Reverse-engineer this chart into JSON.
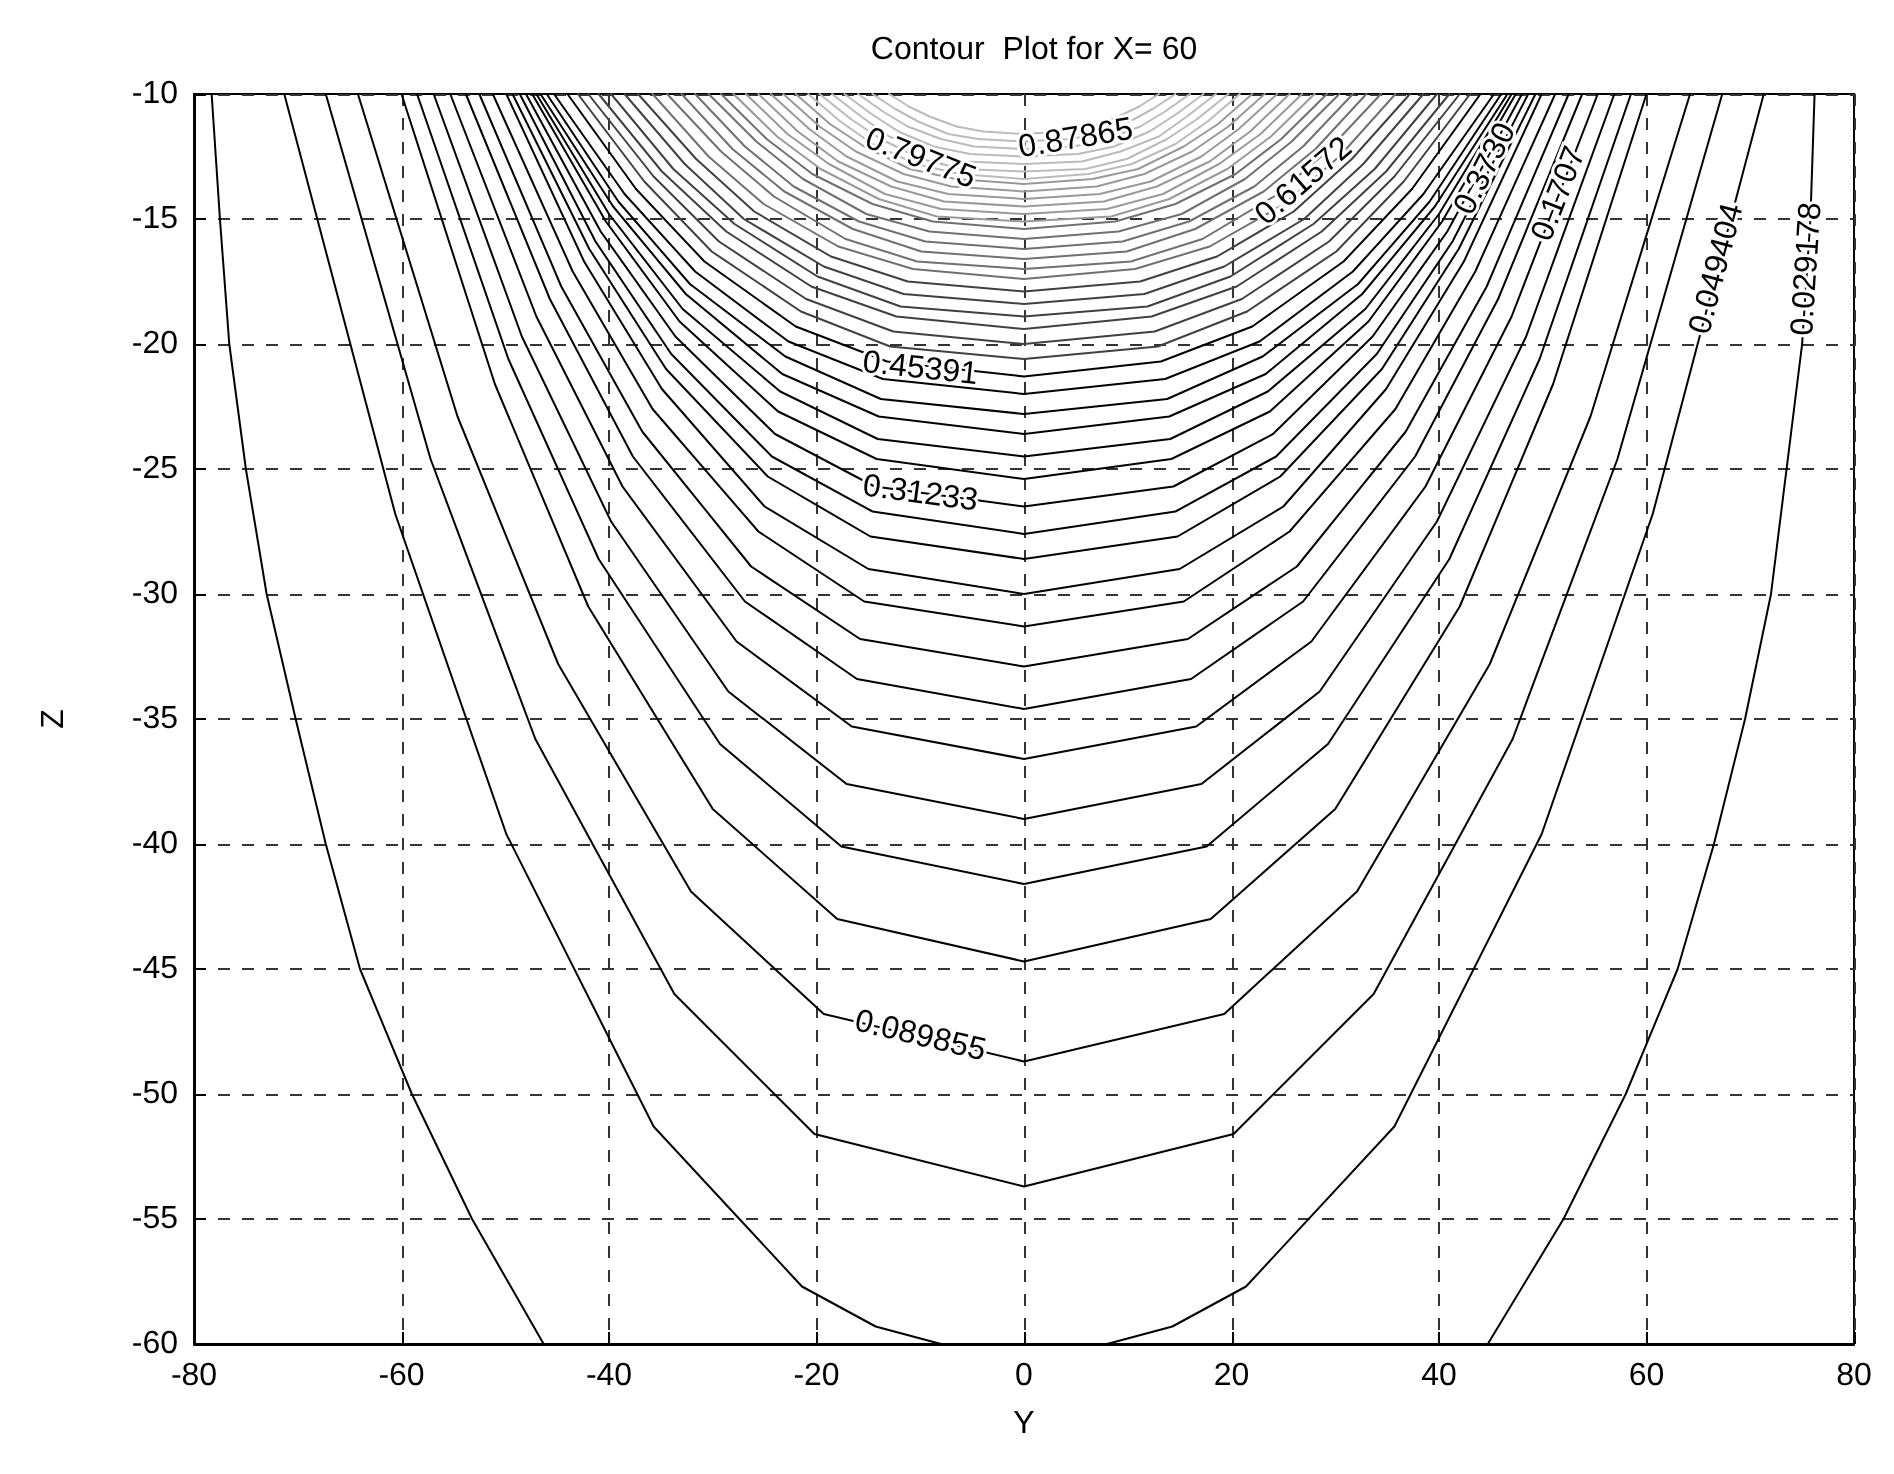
{
  "chart_data": {
    "type": "line",
    "title": "Contour  Plot for X= 60",
    "xlabel": "Y",
    "ylabel": "Z",
    "xlim": [
      -80,
      80
    ],
    "xticks": [
      -80,
      -60,
      -40,
      -20,
      0,
      20,
      40,
      60,
      80
    ],
    "ylim": [
      -60,
      -10
    ],
    "yticks": [
      -60,
      -55,
      -50,
      -45,
      -40,
      -35,
      -30,
      -25,
      -20,
      -15,
      -10
    ],
    "grid": true,
    "marker": "none",
    "line_style": "solid",
    "annotations": [
      {
        "text": "0.79775",
        "x": -10,
        "y": -12.6
      },
      {
        "text": "0.87865",
        "x": 5,
        "y": -11.8
      },
      {
        "text": "0.61572",
        "x": 27,
        "y": -13.5
      },
      {
        "text": "0.3730",
        "x": 44.5,
        "y": -13
      },
      {
        "text": "0.1707",
        "x": 51.6,
        "y": -14
      },
      {
        "text": "0.049404",
        "x": 66.8,
        "y": -17
      },
      {
        "text": "0.029178",
        "x": 75.5,
        "y": -17
      },
      {
        "text": "0.45391",
        "x": -10,
        "y": -21
      },
      {
        "text": "0.31233",
        "x": -10,
        "y": -26
      },
      {
        "text": "0.089855",
        "x": -10,
        "y": -47.7
      }
    ],
    "series": [
      {
        "color": "#000000",
        "x": [
          -78.3,
          -77.5,
          -76.6,
          -75,
          -73,
          -70.2,
          -67.3,
          -64,
          -59,
          -53.2,
          -46.3,
          0,
          44.7,
          52,
          58,
          63,
          66.5,
          69.5,
          72,
          73.5,
          75,
          75.8,
          76.2
        ],
        "values": [
          -10,
          -15,
          -20,
          -25,
          -30,
          -35,
          -40,
          -45,
          -50,
          -55,
          -60,
          null,
          -60,
          -55,
          -50,
          -45,
          -40,
          -35,
          -30,
          -25,
          -20,
          -15,
          -10
        ]
      },
      {
        "color": "#000000",
        "x": [
          -71.3,
          -60.6,
          -49.9,
          -35.7,
          -21.4,
          -14.3,
          -8,
          0,
          8,
          14.3,
          21.4,
          35.7,
          49.9,
          60.6,
          71.3
        ],
        "values": [
          -10,
          -26.8,
          -39.6,
          -51.3,
          -57.7,
          -59.3,
          -60,
          null,
          -60,
          -59.3,
          -57.7,
          -51.3,
          -39.6,
          -26.8,
          -10
        ]
      },
      {
        "color": "#000000",
        "x": [
          -67.3,
          -57.2,
          -47.1,
          -33.7,
          -20.2,
          0,
          20.2,
          33.7,
          47.1,
          57.2,
          67.3
        ],
        "values": [
          -10,
          -24.6,
          -35.8,
          -46,
          -51.6,
          -53.7,
          -51.6,
          -46,
          -35.8,
          -24.6,
          -10
        ]
      },
      {
        "color": "#000000",
        "x": [
          -64.2,
          -54.6,
          -44.9,
          -32.1,
          -19.3,
          0,
          19.3,
          32.1,
          44.9,
          54.6,
          64.2
        ],
        "values": [
          -10,
          -22.9,
          -32.8,
          -41.9,
          -46.8,
          -48.7,
          -46.8,
          -41.9,
          -32.8,
          -22.9,
          -10
        ]
      },
      {
        "color": "#000000",
        "x": [
          -60,
          -51,
          -42,
          -30,
          -18,
          0,
          18,
          30,
          42,
          51,
          60
        ],
        "values": [
          -10,
          -21.6,
          -30.5,
          -38.6,
          -43,
          -44.7,
          -43,
          -38.6,
          -30.5,
          -21.6,
          -10
        ]
      },
      {
        "color": "#000000",
        "x": [
          -58.5,
          -49.7,
          -41,
          -29.3,
          -17.6,
          0,
          17.6,
          29.3,
          41,
          49.7,
          58.5
        ],
        "values": [
          -10,
          -20.6,
          -28.6,
          -36,
          -40.1,
          -41.6,
          -40.1,
          -36,
          -28.6,
          -20.6,
          -10
        ]
      },
      {
        "color": "#000000",
        "x": [
          -56.9,
          -48.4,
          -39.8,
          -28.5,
          -17.1,
          0,
          17.1,
          28.5,
          39.8,
          48.4,
          56.9
        ],
        "values": [
          -10,
          -19.7,
          -27.1,
          -33.9,
          -37.6,
          -39,
          -37.6,
          -33.9,
          -27.1,
          -19.7,
          -10
        ]
      },
      {
        "color": "#000000",
        "x": [
          -55.3,
          -47,
          -38.7,
          -27.7,
          -16.6,
          0,
          16.6,
          27.7,
          38.7,
          47,
          55.3
        ],
        "values": [
          -10,
          -18.9,
          -25.7,
          -31.9,
          -35.3,
          -36.6,
          -35.3,
          -31.9,
          -25.7,
          -18.9,
          -10
        ]
      },
      {
        "color": "#000000",
        "x": [
          -53.8,
          -45.7,
          -37.7,
          -26.9,
          -16.1,
          0,
          16.1,
          26.9,
          37.7,
          45.7,
          53.8
        ],
        "values": [
          -10,
          -18.2,
          -24.5,
          -30.3,
          -33.4,
          -34.6,
          -33.4,
          -30.3,
          -24.5,
          -18.2,
          -10
        ]
      },
      {
        "color": "#000000",
        "x": [
          -52.5,
          -44.6,
          -36.8,
          -26.3,
          -15.8,
          0,
          15.8,
          26.3,
          36.8,
          44.6,
          52.5
        ],
        "values": [
          -10,
          -17.7,
          -23.5,
          -28.9,
          -31.8,
          -32.9,
          -31.8,
          -28.9,
          -23.5,
          -17.7,
          -10
        ]
      },
      {
        "color": "#000000",
        "x": [
          -51.2,
          -43.5,
          -35.8,
          -25.6,
          -15.4,
          0,
          15.4,
          25.6,
          35.8,
          43.5,
          51.2
        ],
        "values": [
          -10,
          -17.1,
          -22.6,
          -27.5,
          -30.3,
          -31.3,
          -30.3,
          -27.5,
          -22.6,
          -17.1,
          -10
        ]
      },
      {
        "color": "#000000",
        "x": [
          -49.9,
          -42.4,
          -34.9,
          -25,
          -15,
          0,
          15,
          25,
          34.9,
          42.4,
          49.9
        ],
        "values": [
          -10,
          -16.7,
          -21.8,
          -26.5,
          -29,
          -30,
          -29,
          -26.5,
          -21.8,
          -16.7,
          -10
        ]
      },
      {
        "color": "#000000",
        "x": [
          -49.3,
          -41.9,
          -34.5,
          -24.7,
          -14.8,
          0,
          14.8,
          24.7,
          34.5,
          41.9,
          49.3
        ],
        "values": [
          -10,
          -16.2,
          -21,
          -25.3,
          -27.7,
          -28.6,
          -27.7,
          -25.3,
          -21,
          -16.2,
          -10
        ]
      },
      {
        "color": "#000000",
        "x": [
          -48.6,
          -41.3,
          -34,
          -24.3,
          -14.6,
          0,
          14.6,
          24.3,
          34,
          41.3,
          48.6
        ],
        "values": [
          -10,
          -15.9,
          -20.4,
          -24.5,
          -26.7,
          -27.6,
          -26.7,
          -24.5,
          -20.4,
          -15.9,
          -10
        ]
      },
      {
        "color": "#000000",
        "x": [
          -48,
          -40.8,
          -33.6,
          -24,
          -14.4,
          0,
          14.4,
          24,
          33.6,
          40.8,
          48
        ],
        "values": [
          -10,
          -15.5,
          -19.7,
          -23.6,
          -25.7,
          -26.5,
          -25.7,
          -23.6,
          -19.7,
          -15.5,
          -10
        ]
      },
      {
        "color": "#000000",
        "x": [
          -47.4,
          -40.3,
          -33.2,
          -23.7,
          -14.2,
          0,
          14.2,
          23.7,
          33.2,
          40.3,
          47.4
        ],
        "values": [
          -10,
          -15.1,
          -19.1,
          -22.7,
          -24.6,
          -25.4,
          -24.6,
          -22.7,
          -19.1,
          -15.1,
          -10
        ]
      },
      {
        "color": "#000000",
        "x": [
          -47,
          -40,
          -32.9,
          -23.5,
          -14.1,
          0,
          14.1,
          23.5,
          32.9,
          40,
          47
        ],
        "values": [
          -10,
          -14.8,
          -18.6,
          -21.9,
          -23.8,
          -24.5,
          -23.8,
          -21.9,
          -18.6,
          -14.8,
          -10
        ]
      },
      {
        "color": "#000000",
        "x": [
          -46.6,
          -39.6,
          -32.6,
          -23.3,
          -14,
          0,
          14,
          23.3,
          32.6,
          39.6,
          46.6
        ],
        "values": [
          -10,
          -14.5,
          -18,
          -21.2,
          -22.9,
          -23.6,
          -22.9,
          -21.2,
          -18,
          -14.5,
          -10
        ]
      },
      {
        "color": "#000000",
        "x": [
          -46,
          -39.1,
          -32.2,
          -23,
          -13.8,
          0,
          13.8,
          23,
          32.2,
          39.1,
          46
        ],
        "values": [
          -10,
          -14.3,
          -17.6,
          -20.5,
          -22.2,
          -22.8,
          -22.2,
          -20.5,
          -17.6,
          -14.3,
          -10
        ]
      },
      {
        "color": "#000000",
        "x": [
          -45.3,
          -38.5,
          -31.7,
          -22.7,
          -13.6,
          0,
          13.6,
          22.7,
          31.7,
          38.5,
          45.3
        ],
        "values": [
          -10,
          -14,
          -17.1,
          -19.9,
          -21.4,
          -22,
          -21.4,
          -19.9,
          -17.1,
          -14,
          -10
        ]
      },
      {
        "color": "#000000",
        "x": [
          -44,
          -37.4,
          -30.8,
          -22,
          -13.2,
          0,
          13.2,
          22,
          30.8,
          37.4,
          44
        ],
        "values": [
          -10,
          -13.8,
          -16.7,
          -19.3,
          -20.7,
          -21.3,
          -20.7,
          -19.3,
          -16.7,
          -13.8,
          -10
        ]
      },
      {
        "color": "#404040",
        "x": [
          -43,
          -36.6,
          -30.1,
          -21.5,
          -12.9,
          0,
          12.9,
          21.5,
          30.1,
          36.6,
          43
        ],
        "values": [
          -10,
          -13.5,
          -16.3,
          -18.7,
          -20.1,
          -20.6,
          -20.1,
          -18.7,
          -16.3,
          -13.5,
          -10
        ]
      },
      {
        "color": "#404040",
        "x": [
          -42,
          -35.7,
          -29.4,
          -21,
          -12.6,
          0,
          12.6,
          21,
          29.4,
          35.7,
          42
        ],
        "values": [
          -10,
          -13.3,
          -15.9,
          -18.2,
          -19.5,
          -20,
          -19.5,
          -18.2,
          -15.9,
          -13.3,
          -10
        ]
      },
      {
        "color": "#404040",
        "x": [
          -41,
          -34.9,
          -28.7,
          -20.5,
          -12.3,
          0,
          12.3,
          20.5,
          28.7,
          34.9,
          41
        ],
        "values": [
          -10,
          -13.1,
          -15.5,
          -17.7,
          -18.9,
          -19.4,
          -18.9,
          -17.7,
          -15.5,
          -13.1,
          -10
        ]
      },
      {
        "color": "#404040",
        "x": [
          -39.8,
          -33.8,
          -27.9,
          -19.9,
          -11.9,
          0,
          11.9,
          19.9,
          27.9,
          33.8,
          39.8
        ],
        "values": [
          -10,
          -13,
          -15.2,
          -17.3,
          -18.5,
          -18.9,
          -18.5,
          -17.3,
          -15.2,
          -13,
          -10
        ]
      },
      {
        "color": "#404040",
        "x": [
          -38.5,
          -32.7,
          -27,
          -19.3,
          -11.6,
          0,
          11.6,
          19.3,
          27,
          32.7,
          38.5
        ],
        "values": [
          -10,
          -12.8,
          -15,
          -16.9,
          -18,
          -18.4,
          -18,
          -16.9,
          -15,
          -12.8,
          -10
        ]
      },
      {
        "color": "#404040",
        "x": [
          -37.2,
          -31.6,
          -26,
          -18.6,
          -11.2,
          0,
          11.2,
          18.6,
          26,
          31.6,
          37.2
        ],
        "values": [
          -10,
          -12.6,
          -14.7,
          -16.5,
          -17.5,
          -17.9,
          -17.5,
          -16.5,
          -14.7,
          -12.6,
          -10
        ]
      },
      {
        "color": "#707070",
        "x": [
          -35.8,
          -30.4,
          -25.1,
          -17.9,
          -10.7,
          0,
          10.7,
          17.9,
          25.1,
          30.4,
          35.8
        ],
        "values": [
          -10,
          -12.5,
          -14.4,
          -16.1,
          -17,
          -17.4,
          -17,
          -16.1,
          -14.4,
          -12.5,
          -10
        ]
      },
      {
        "color": "#707070",
        "x": [
          -34.4,
          -29.2,
          -24.1,
          -17.2,
          -10.3,
          0,
          10.3,
          17.2,
          24.1,
          29.2,
          34.4
        ],
        "values": [
          -10,
          -12.3,
          -14.1,
          -15.8,
          -16.7,
          -17,
          -16.7,
          -15.8,
          -14.1,
          -12.3,
          -10
        ]
      },
      {
        "color": "#707070",
        "x": [
          -33,
          -28.1,
          -23.1,
          -16.5,
          -9.9,
          0,
          9.9,
          16.5,
          23.1,
          28.1,
          33
        ],
        "values": [
          -10,
          -12.2,
          -13.9,
          -15.4,
          -16.3,
          -16.6,
          -16.3,
          -15.4,
          -13.9,
          -12.2,
          -10
        ]
      },
      {
        "color": "#707070",
        "x": [
          -31.7,
          -26.9,
          -22.2,
          -15.9,
          -9.5,
          0,
          9.5,
          15.9,
          22.2,
          26.9,
          31.7
        ],
        "values": [
          -10,
          -12.1,
          -13.7,
          -15.1,
          -15.9,
          -16.2,
          -15.9,
          -15.1,
          -13.7,
          -12.1,
          -10
        ]
      },
      {
        "color": "#707070",
        "x": [
          -30.4,
          -25.8,
          -21.3,
          -15.2,
          -9.1,
          0,
          9.1,
          15.2,
          21.3,
          25.8,
          30.4
        ],
        "values": [
          -10,
          -11.9,
          -13.4,
          -14.8,
          -15.5,
          -15.8,
          -15.5,
          -14.8,
          -13.4,
          -11.9,
          -10
        ]
      },
      {
        "color": "#707070",
        "x": [
          -29.2,
          -24.8,
          -20.4,
          -14.6,
          -8.8,
          0,
          8.8,
          14.6,
          20.4,
          24.8,
          29.2
        ],
        "values": [
          -10,
          -11.8,
          -13.2,
          -14.4,
          -15.1,
          -15.4,
          -15.1,
          -14.4,
          -13.2,
          -11.8,
          -10
        ]
      },
      {
        "color": "#999999",
        "x": [
          -28,
          -23.8,
          -19.6,
          -14,
          -8.4,
          0,
          8.4,
          14,
          19.6,
          23.8,
          28
        ],
        "values": [
          -10,
          -11.7,
          -13,
          -14.2,
          -14.9,
          -15.1,
          -14.9,
          -14.2,
          -13,
          -11.7,
          -10
        ]
      },
      {
        "color": "#999999",
        "x": [
          -26.8,
          -22.8,
          -18.8,
          -13.4,
          -8,
          0,
          8,
          13.4,
          18.8,
          22.8,
          26.8
        ],
        "values": [
          -10,
          -11.6,
          -12.8,
          -14,
          -14.6,
          -14.8,
          -14.6,
          -14,
          -12.8,
          -11.6,
          -10
        ]
      },
      {
        "color": "#999999",
        "x": [
          -25.6,
          -21.8,
          -17.9,
          -12.8,
          -7.7,
          0,
          7.7,
          12.8,
          17.9,
          21.8,
          25.6
        ],
        "values": [
          -10,
          -11.5,
          -12.7,
          -13.7,
          -14.3,
          -14.5,
          -14.3,
          -13.7,
          -12.7,
          -11.5,
          -10
        ]
      },
      {
        "color": "#999999",
        "x": [
          -24.4,
          -20.7,
          -17.1,
          -12.2,
          -7.3,
          0,
          7.3,
          12.2,
          17.1,
          20.7,
          24.4
        ],
        "values": [
          -10,
          -11.4,
          -12.5,
          -13.5,
          -14,
          -14.2,
          -14,
          -13.5,
          -12.5,
          -11.4,
          -10
        ]
      },
      {
        "color": "#999999",
        "x": [
          -23.2,
          -19.7,
          -16.2,
          -11.6,
          -7,
          0,
          7,
          11.6,
          16.2,
          19.7,
          23.2
        ],
        "values": [
          -10,
          -11.3,
          -12.3,
          -13.2,
          -13.7,
          -13.9,
          -13.7,
          -13.2,
          -12.3,
          -11.3,
          -10
        ]
      },
      {
        "color": "#999999",
        "x": [
          -22,
          -18.7,
          -15.4,
          -11,
          -6.6,
          0,
          6.6,
          11,
          15.4,
          18.7,
          22
        ],
        "values": [
          -10,
          -11.2,
          -12.1,
          -13,
          -13.4,
          -13.6,
          -13.4,
          -13,
          -12.1,
          -11.2,
          -10
        ]
      },
      {
        "color": "#bbbbbb",
        "x": [
          -20.8,
          -17.7,
          -14.6,
          -10.4,
          -6.2,
          0,
          6.2,
          10.4,
          14.6,
          17.7,
          20.8
        ],
        "values": [
          -10,
          -11.1,
          -12,
          -12.8,
          -13.2,
          -13.4,
          -13.2,
          -12.8,
          -12,
          -11.1,
          -10
        ]
      },
      {
        "color": "#bbbbbb",
        "x": [
          -19.7,
          -16.7,
          -13.8,
          -9.9,
          -5.9,
          0,
          5.9,
          9.9,
          13.8,
          16.7,
          19.7
        ],
        "values": [
          -10,
          -11,
          -11.8,
          -12.6,
          -13,
          -13.1,
          -13,
          -12.6,
          -11.8,
          -11,
          -10
        ]
      },
      {
        "color": "#bbbbbb",
        "x": [
          -18.5,
          -15.7,
          -13,
          -9.3,
          -5.6,
          0,
          5.6,
          9.3,
          13,
          15.7,
          18.5
        ],
        "values": [
          -10,
          -10.9,
          -11.7,
          -12.3,
          -12.7,
          -12.8,
          -12.7,
          -12.3,
          -11.7,
          -10.9,
          -10
        ]
      },
      {
        "color": "#bbbbbb",
        "x": [
          -17.3,
          -14.7,
          -12.1,
          -8.7,
          -5.2,
          0,
          5.2,
          8.7,
          12.1,
          14.7,
          17.3
        ],
        "values": [
          -10,
          -10.8,
          -11.5,
          -12.1,
          -12.4,
          -12.5,
          -12.4,
          -12.1,
          -11.5,
          -10.8,
          -10
        ]
      },
      {
        "color": "#bbbbbb",
        "x": [
          -16,
          -13.6,
          -11.2,
          -8,
          -4.8,
          0,
          4.8,
          8,
          11.2,
          13.6,
          16
        ],
        "values": [
          -10,
          -10.7,
          -11.3,
          -11.8,
          -12.1,
          -12.2,
          -12.1,
          -11.8,
          -11.3,
          -10.7,
          -10
        ]
      },
      {
        "color": "#bbbbbb",
        "x": [
          -14.6,
          -12.4,
          -10.2,
          -7.3,
          -4.4,
          0,
          4.4,
          7.3,
          10.2,
          12.4,
          14.6
        ],
        "values": [
          -10,
          -10.6,
          -11.1,
          -11.6,
          -11.8,
          -11.9,
          -11.8,
          -11.6,
          -11.1,
          -10.6,
          -10
        ]
      },
      {
        "color": "#bbbbbb",
        "x": [
          -13,
          -11.1,
          -9.1,
          -6.5,
          -3.9,
          0,
          3.9,
          6.5,
          9.1,
          11.1,
          13
        ],
        "values": [
          -10,
          -10.5,
          -10.9,
          -11.3,
          -11.5,
          -11.6,
          -11.5,
          -11.3,
          -10.9,
          -10.5,
          -10
        ]
      }
    ]
  }
}
